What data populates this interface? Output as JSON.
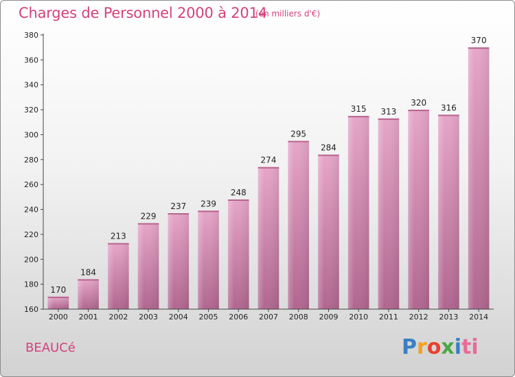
{
  "chart_data": {
    "type": "bar",
    "title": "Charges de Personnel 2000 à 2014",
    "subtitle": "(en milliers d'€)",
    "categories": [
      "2000",
      "2001",
      "2002",
      "2003",
      "2004",
      "2005",
      "2006",
      "2007",
      "2008",
      "2009",
      "2010",
      "2011",
      "2012",
      "2013",
      "2014"
    ],
    "values": [
      170,
      184,
      213,
      229,
      237,
      239,
      248,
      274,
      295,
      284,
      315,
      313,
      320,
      316,
      370
    ],
    "ylim": [
      160,
      380
    ],
    "yticks": [
      160,
      180,
      200,
      220,
      240,
      260,
      280,
      300,
      320,
      340,
      360,
      380
    ],
    "xlabel": "",
    "ylabel": "",
    "grid": false,
    "bar_color": "#dc8cb4",
    "bar_color_dark": "#b86c96"
  },
  "commune": "BEAUCé",
  "logo": {
    "letters": [
      "P",
      "r",
      "o",
      "x",
      "i",
      "ti"
    ]
  }
}
